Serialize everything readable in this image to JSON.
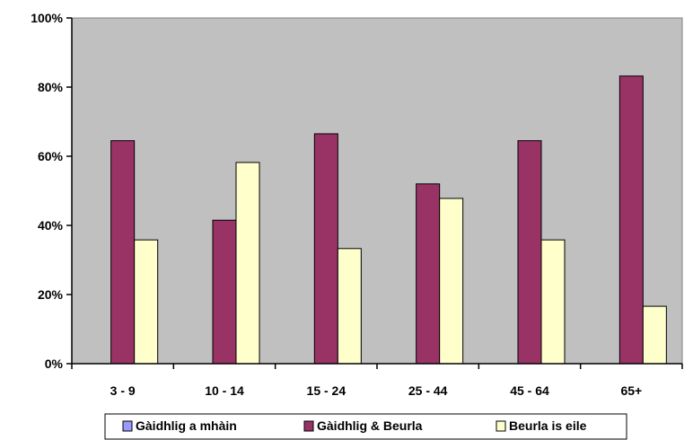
{
  "chart_data": {
    "type": "bar",
    "categories": [
      "3 - 9",
      "10 - 14",
      "15 - 24",
      "25 - 44",
      "45 - 64",
      "65+"
    ],
    "series": [
      {
        "name": "Gàidhlig a mhàin",
        "color": "#9999ff",
        "values": [
          0,
          0,
          0,
          0,
          0,
          0
        ]
      },
      {
        "name": "Gàidhlig & Beurla",
        "color": "#993366",
        "values": [
          64.5,
          41.5,
          66.5,
          52,
          64.5,
          83.2
        ]
      },
      {
        "name": "Beurla is eile",
        "color": "#ffffcc",
        "values": [
          35.8,
          58.2,
          33.3,
          47.8,
          35.8,
          16.6
        ]
      }
    ],
    "ylim": [
      0,
      100
    ],
    "yticks": [
      "0%",
      "20%",
      "40%",
      "60%",
      "80%",
      "100%"
    ],
    "ytick_values": [
      0,
      20,
      40,
      60,
      80,
      100
    ],
    "plot_background": "#c0c0c0",
    "legend_position": "bottom",
    "xlabel": "",
    "ylabel": "",
    "title": ""
  }
}
